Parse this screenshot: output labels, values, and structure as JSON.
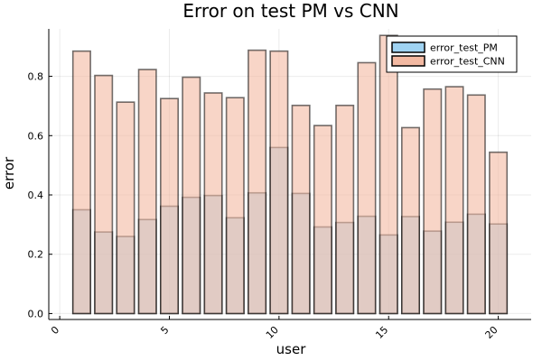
{
  "chart_data": {
    "type": "bar",
    "title": "Error on test PM vs CNN",
    "xlabel": "user",
    "ylabel": "error",
    "xlim": [
      -0.5,
      21.5
    ],
    "ylim": [
      -0.02,
      0.96
    ],
    "xticks": [
      0,
      5,
      10,
      15,
      20
    ],
    "xtick_labels": [
      "0",
      "5",
      "10",
      "15",
      "20"
    ],
    "yticks": [
      0.0,
      0.2,
      0.4,
      0.6,
      0.8
    ],
    "ytick_labels": [
      "0.0",
      "0.2",
      "0.4",
      "0.6",
      "0.8"
    ],
    "grid": true,
    "legend_position": "top-right",
    "categories": [
      1,
      2,
      3,
      4,
      5,
      6,
      7,
      8,
      9,
      10,
      11,
      12,
      13,
      14,
      15,
      16,
      17,
      18,
      19,
      20
    ],
    "series": [
      {
        "name": "error_test_PM",
        "color": "#9fd3f2",
        "values": [
          0.35,
          0.275,
          0.26,
          0.317,
          0.362,
          0.392,
          0.398,
          0.323,
          0.407,
          0.56,
          0.405,
          0.292,
          0.307,
          0.328,
          0.265,
          0.327,
          0.278,
          0.308,
          0.335,
          0.302
        ]
      },
      {
        "name": "error_test_CNN",
        "color": "#f3b9a2",
        "values": [
          0.885,
          0.803,
          0.713,
          0.823,
          0.725,
          0.797,
          0.744,
          0.728,
          0.888,
          0.885,
          0.702,
          0.634,
          0.702,
          0.846,
          0.938,
          0.627,
          0.757,
          0.765,
          0.737,
          0.544
        ]
      }
    ]
  }
}
